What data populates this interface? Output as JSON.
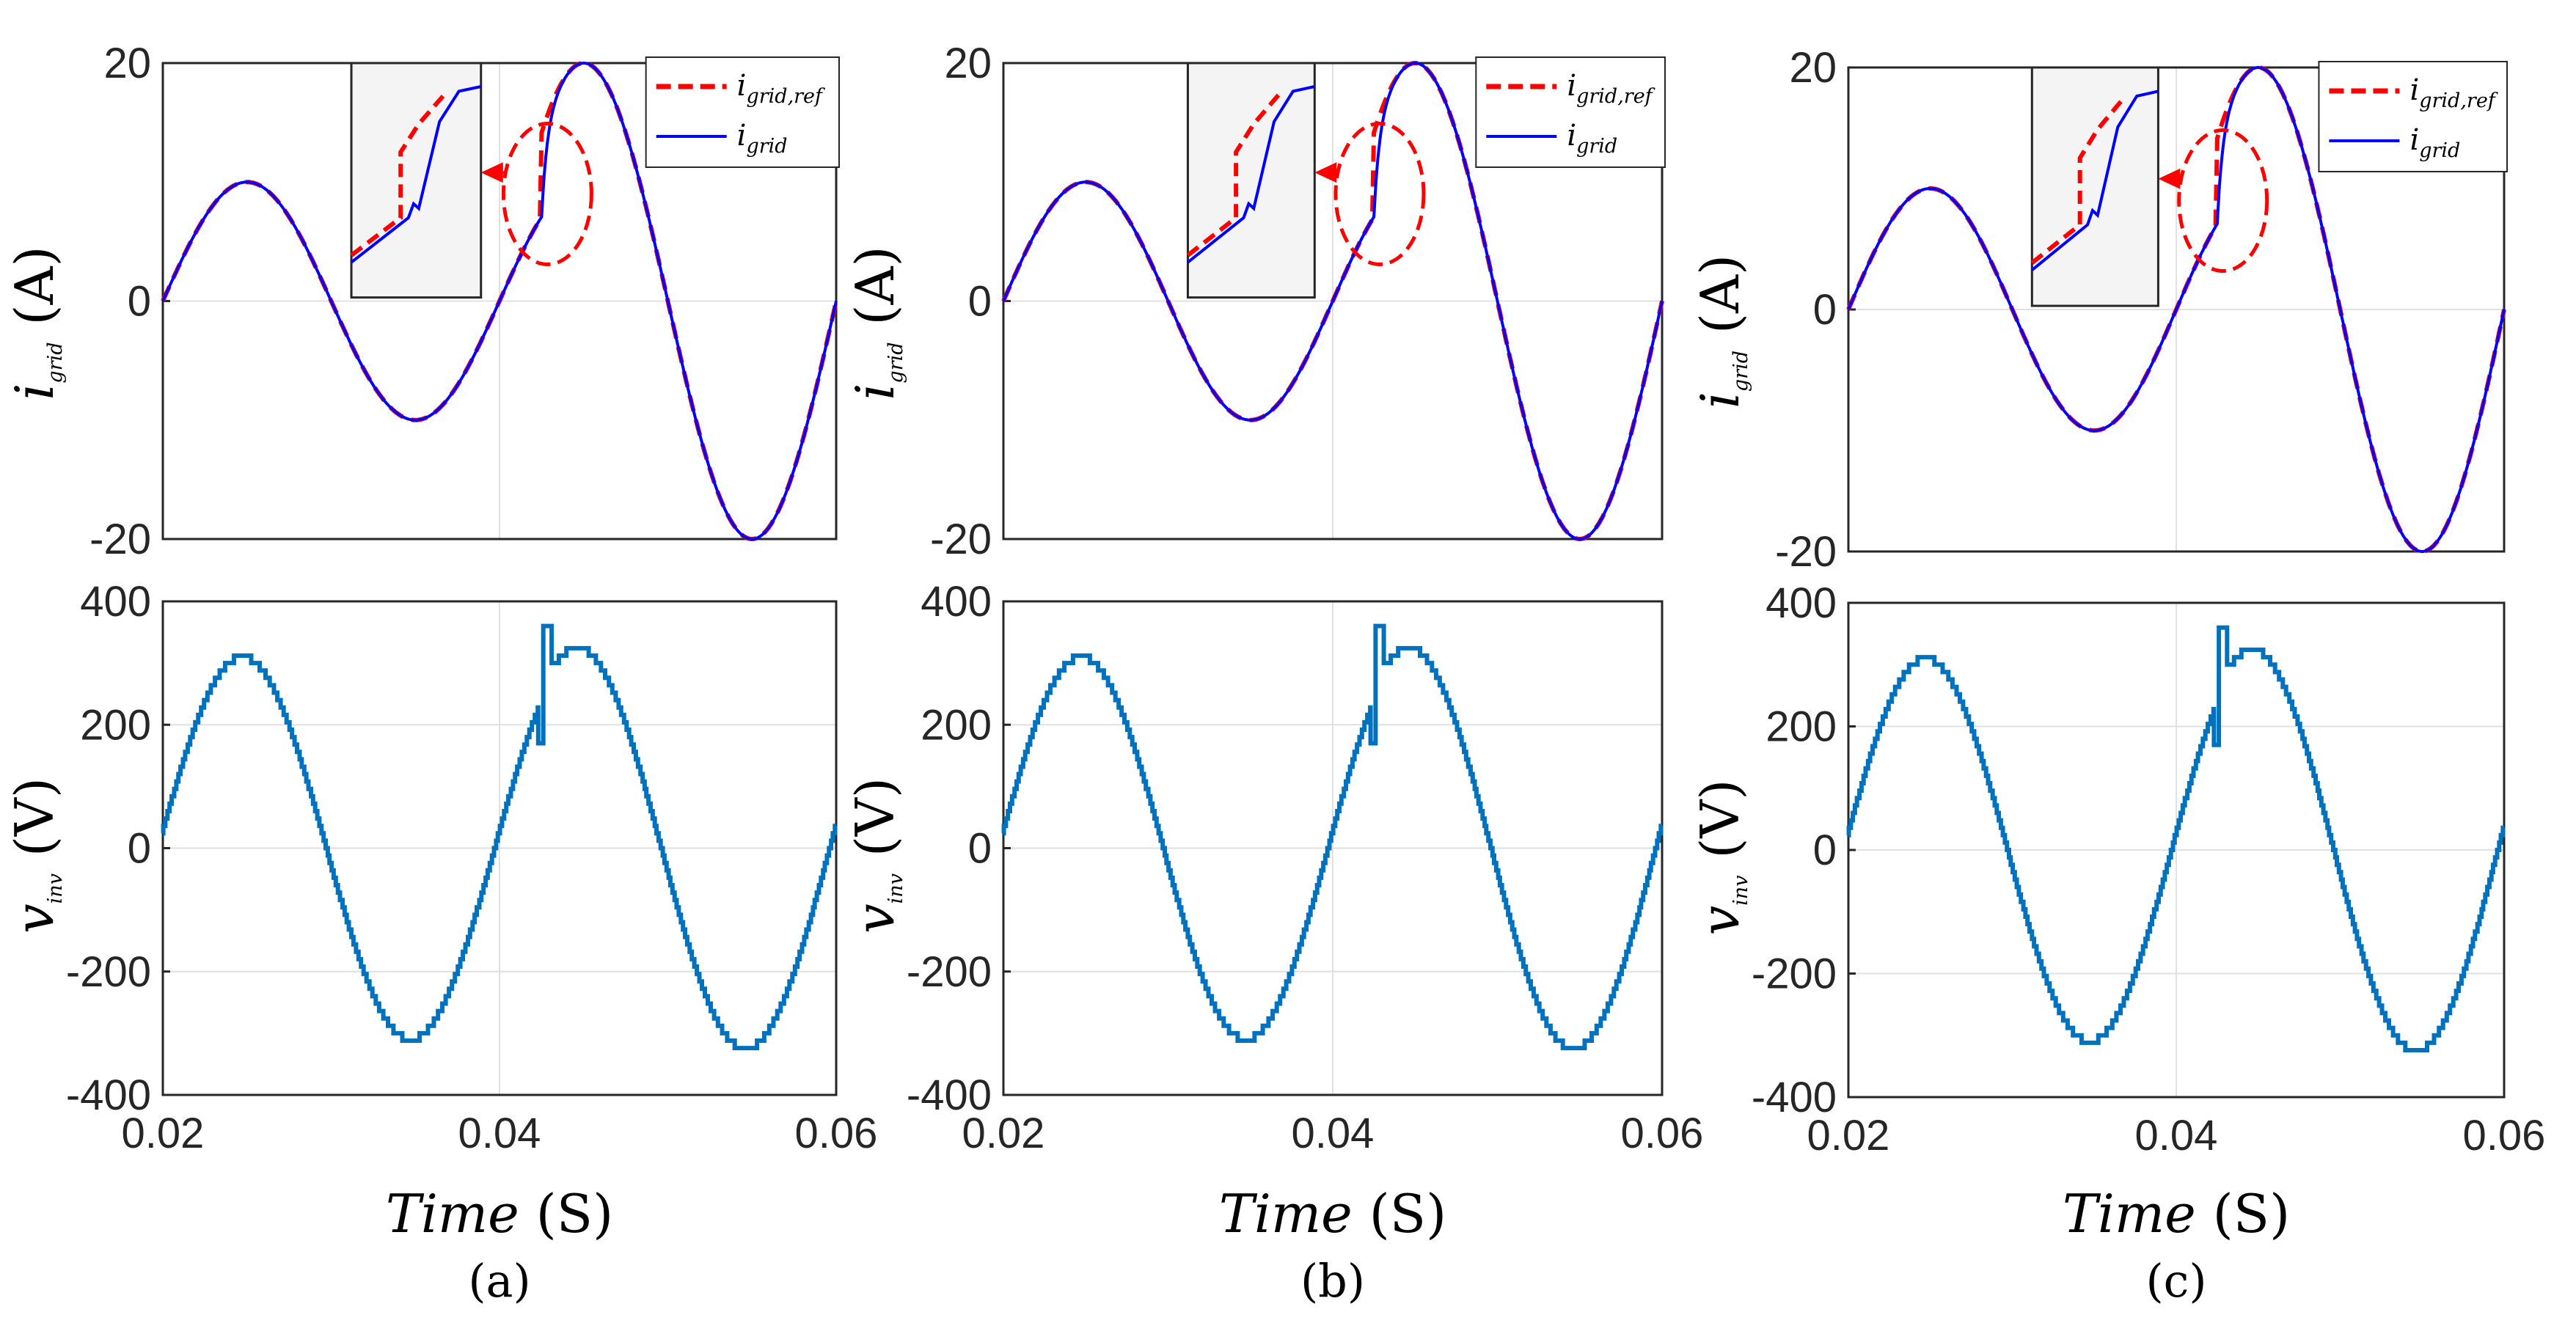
{
  "figure": {
    "captions": [
      "(a)",
      "(b)",
      "(c)"
    ],
    "x_label_main": "Time",
    "x_label_unit": "(S)"
  },
  "colors": {
    "ref": "#ff0000",
    "grid_current": "#0000ff",
    "voltage": "#0072bd",
    "axis": "#262626",
    "gridline": "#e0e0e0",
    "inset_bg": "#f4f4f4"
  },
  "chart_data": [
    {
      "panel": "a",
      "type": "line",
      "xlim": [
        0.02,
        0.06
      ],
      "ylim": [
        -20,
        20
      ],
      "xticks": [
        "0.02",
        "0.04",
        "0.06"
      ],
      "yticks": [
        "20",
        "0",
        "-20"
      ],
      "ylabel_main": "i",
      "ylabel_sub": "grid",
      "ylabel_unit": "(A)",
      "legend": [
        {
          "main": "i",
          "sub": "grid,ref",
          "style": "dashed",
          "color": "red"
        },
        {
          "main": "i",
          "sub": "grid",
          "style": "solid",
          "color": "blue"
        }
      ],
      "step_time": 0.0425,
      "series": [
        {
          "name": "i_grid_ref",
          "amplitude_before": 10,
          "amplitude_after": 20,
          "frequency_hz": 50,
          "phase_start": 0.02
        },
        {
          "name": "i_grid",
          "amplitude_before": 10,
          "amplitude_after": 20,
          "frequency_hz": 50,
          "phase_start": 0.02
        }
      ],
      "annotation": "zoom inset of current step transient"
    },
    {
      "panel": "a",
      "type": "line",
      "xlim": [
        0.02,
        0.06
      ],
      "ylim": [
        -400,
        400
      ],
      "xticks": [
        "0.02",
        "0.04",
        "0.06"
      ],
      "yticks": [
        "400",
        "200",
        "0",
        "-200",
        "-400"
      ],
      "ylabel_main": "v",
      "ylabel_sub": "inv",
      "ylabel_unit": "(V)",
      "series": [
        {
          "name": "v_inv",
          "peak_before": 310,
          "peak_after": 325,
          "spike_max": 360,
          "spike_min": 170,
          "frequency_hz": 50
        }
      ]
    },
    {
      "panel": "b",
      "type": "line",
      "xlim": [
        0.02,
        0.06
      ],
      "ylim": [
        -20,
        20
      ],
      "xticks": [
        "0.02",
        "0.04",
        "0.06"
      ],
      "yticks": [
        "20",
        "0",
        "-20"
      ],
      "ylabel_main": "i",
      "ylabel_sub": "grid",
      "ylabel_unit": "(A)",
      "legend": [
        {
          "main": "i",
          "sub": "grid,ref",
          "style": "dashed",
          "color": "red"
        },
        {
          "main": "i",
          "sub": "grid",
          "style": "solid",
          "color": "blue"
        }
      ],
      "step_time": 0.0425,
      "series": [
        {
          "name": "i_grid_ref",
          "amplitude_before": 10,
          "amplitude_after": 20,
          "frequency_hz": 50
        },
        {
          "name": "i_grid",
          "amplitude_before": 10,
          "amplitude_after": 20,
          "frequency_hz": 50
        }
      ],
      "annotation": "zoom inset of current step transient"
    },
    {
      "panel": "b",
      "type": "line",
      "xlim": [
        0.02,
        0.06
      ],
      "ylim": [
        -400,
        400
      ],
      "xticks": [
        "0.02",
        "0.04",
        "0.06"
      ],
      "yticks": [
        "400",
        "200",
        "0",
        "-200",
        "-400"
      ],
      "ylabel_main": "v",
      "ylabel_sub": "inv",
      "ylabel_unit": "(V)",
      "series": [
        {
          "name": "v_inv",
          "peak_before": 310,
          "peak_after": 325,
          "spike_max": 360,
          "spike_min": 170,
          "frequency_hz": 50
        }
      ]
    },
    {
      "panel": "c",
      "type": "line",
      "xlim": [
        0.02,
        0.06
      ],
      "ylim": [
        -20,
        20
      ],
      "xticks": [
        "0.02",
        "0.04",
        "0.06"
      ],
      "yticks": [
        "20",
        "0",
        "-20"
      ],
      "ylabel_main": "i",
      "ylabel_sub": "grid",
      "ylabel_unit": "(A)",
      "legend": [
        {
          "main": "i",
          "sub": "grid,ref",
          "style": "dashed",
          "color": "red"
        },
        {
          "main": "i",
          "sub": "grid",
          "style": "solid",
          "color": "blue"
        }
      ],
      "step_time": 0.0425,
      "series": [
        {
          "name": "i_grid_ref",
          "amplitude_before": 10,
          "amplitude_after": 20,
          "frequency_hz": 50
        },
        {
          "name": "i_grid",
          "amplitude_before": 10,
          "amplitude_after": 20,
          "frequency_hz": 50
        }
      ],
      "annotation": "zoom inset of current step transient"
    },
    {
      "panel": "c",
      "type": "line",
      "xlim": [
        0.02,
        0.06
      ],
      "ylim": [
        -400,
        400
      ],
      "xticks": [
        "0.02",
        "0.04",
        "0.06"
      ],
      "yticks": [
        "400",
        "200",
        "0",
        "-200",
        "-400"
      ],
      "ylabel_main": "v",
      "ylabel_sub": "inv",
      "ylabel_unit": "(V)",
      "series": [
        {
          "name": "v_inv",
          "peak_before": 310,
          "peak_after": 325,
          "spike_max": 360,
          "spike_min": 170,
          "frequency_hz": 50
        }
      ]
    }
  ]
}
